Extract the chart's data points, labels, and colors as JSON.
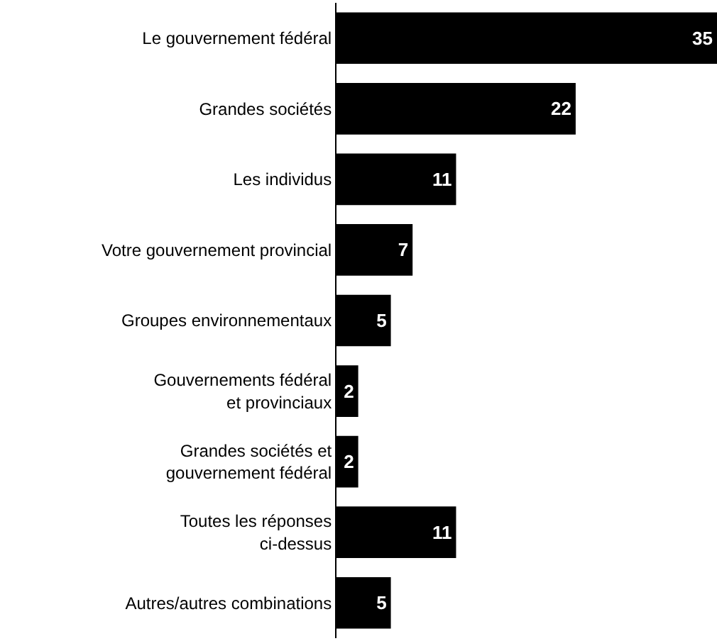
{
  "chart_data": {
    "type": "bar",
    "orientation": "horizontal",
    "categories": [
      "Le gouvernement fédéral",
      "Grandes sociétés",
      "Les individus",
      "Votre gouvernement provincial",
      "Groupes environnementaux",
      "Gouvernements fédéral\net provinciaux",
      "Grandes sociétés et\ngouvernement fédéral",
      "Toutes les réponses\nci-dessus",
      "Autres/autres combinations"
    ],
    "values": [
      35,
      22,
      11,
      7,
      5,
      2,
      2,
      11,
      5
    ],
    "color": "#000000",
    "data_labels": true
  }
}
